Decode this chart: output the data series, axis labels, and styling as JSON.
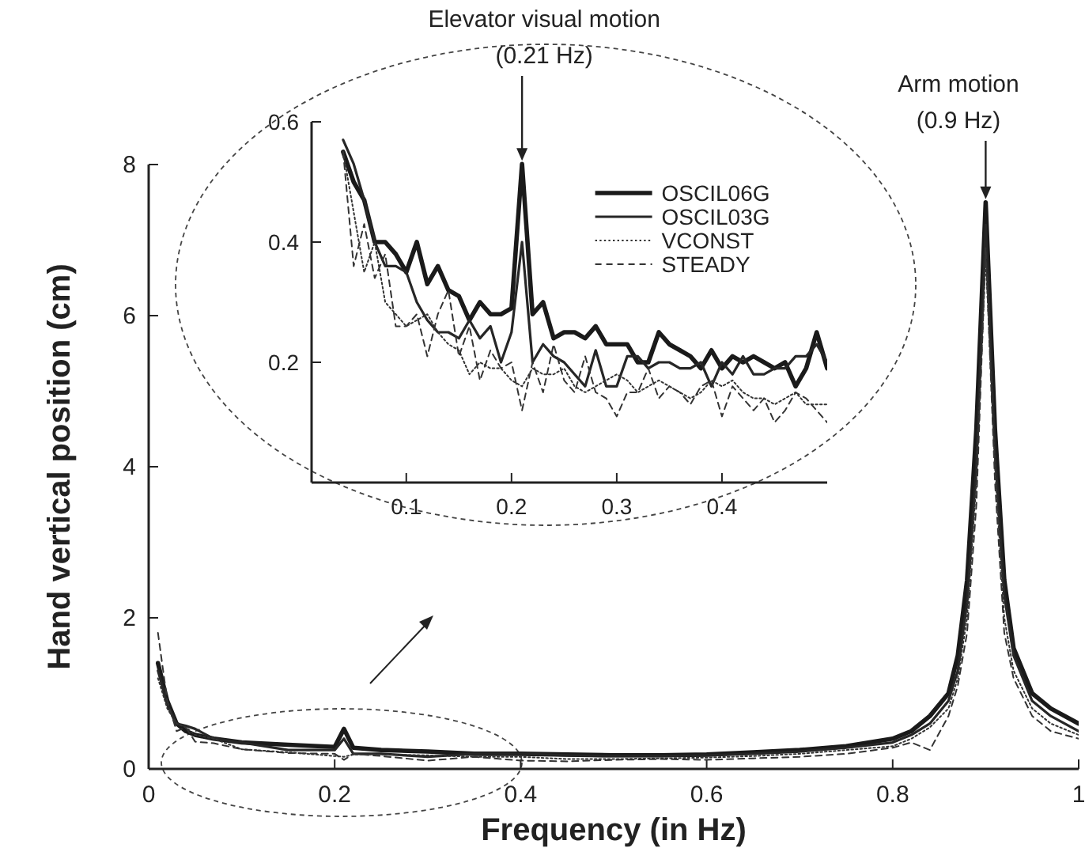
{
  "chart_data": [
    {
      "type": "line",
      "xlabel": "Frequency (in Hz)",
      "ylabel": "Hand vertical position (cm)",
      "x": [
        0.01,
        0.02,
        0.03,
        0.04,
        0.05,
        0.07,
        0.1,
        0.15,
        0.2,
        0.21,
        0.22,
        0.25,
        0.3,
        0.35,
        0.4,
        0.45,
        0.5,
        0.55,
        0.6,
        0.65,
        0.7,
        0.75,
        0.8,
        0.82,
        0.84,
        0.86,
        0.87,
        0.88,
        0.89,
        0.9,
        0.91,
        0.92,
        0.93,
        0.95,
        0.97,
        1.0
      ],
      "xlim": [
        0,
        1
      ],
      "xticks": [
        0,
        0.2,
        0.4,
        0.6,
        0.8,
        1
      ],
      "ylim": [
        0,
        8
      ],
      "yticks": [
        0,
        2,
        4,
        6,
        8
      ],
      "annotations": [
        {
          "text": "Arm motion\n(0.9 Hz)",
          "x": 0.9,
          "y": 7.5
        }
      ],
      "series": [
        {
          "color": "#1a1a1a",
          "line_style": "solid",
          "values": [
            1.4,
            0.9,
            0.6,
            0.5,
            0.45,
            0.4,
            0.35,
            0.32,
            0.29,
            0.53,
            0.28,
            0.25,
            0.23,
            0.2,
            0.2,
            0.19,
            0.18,
            0.18,
            0.19,
            0.22,
            0.25,
            0.3,
            0.4,
            0.5,
            0.7,
            1.0,
            1.5,
            2.5,
            4.5,
            7.5,
            4.5,
            2.5,
            1.6,
            1.0,
            0.8,
            0.6
          ]
        },
        {
          "color": "#262626",
          "line_style": "solid",
          "values": [
            1.3,
            0.85,
            0.6,
            0.57,
            0.53,
            0.4,
            0.35,
            0.25,
            0.25,
            0.4,
            0.2,
            0.2,
            0.16,
            0.2,
            0.2,
            0.18,
            0.17,
            0.17,
            0.18,
            0.2,
            0.23,
            0.28,
            0.35,
            0.45,
            0.6,
            0.9,
            1.3,
            2.2,
            4.0,
            7.2,
            4.2,
            2.3,
            1.5,
            0.9,
            0.7,
            0.5
          ]
        },
        {
          "color": "#333333",
          "line_style": "dotted",
          "values": [
            1.2,
            0.8,
            0.6,
            0.55,
            0.45,
            0.4,
            0.26,
            0.22,
            0.17,
            0.16,
            0.19,
            0.19,
            0.18,
            0.16,
            0.16,
            0.13,
            0.13,
            0.14,
            0.15,
            0.17,
            0.2,
            0.25,
            0.3,
            0.4,
            0.55,
            0.8,
            1.2,
            2.0,
            3.8,
            6.8,
            4.0,
            2.0,
            1.3,
            0.8,
            0.6,
            0.45
          ]
        },
        {
          "color": "#333333",
          "line_style": "dashed",
          "values": [
            1.8,
            0.9,
            0.5,
            0.55,
            0.36,
            0.34,
            0.26,
            0.21,
            0.2,
            0.12,
            0.2,
            0.17,
            0.11,
            0.16,
            0.11,
            0.1,
            0.12,
            0.13,
            0.12,
            0.14,
            0.16,
            0.2,
            0.28,
            0.35,
            0.25,
            0.7,
            1.1,
            1.8,
            3.5,
            6.9,
            3.8,
            1.8,
            1.2,
            0.7,
            0.5,
            0.4
          ]
        }
      ]
    },
    {
      "type": "line",
      "x": [
        0.04,
        0.05,
        0.06,
        0.07,
        0.08,
        0.09,
        0.1,
        0.11,
        0.12,
        0.13,
        0.14,
        0.15,
        0.16,
        0.17,
        0.18,
        0.19,
        0.2,
        0.21,
        0.22,
        0.23,
        0.24,
        0.25,
        0.26,
        0.27,
        0.28,
        0.29,
        0.3,
        0.31,
        0.32,
        0.33,
        0.34,
        0.35,
        0.36,
        0.37,
        0.38,
        0.39,
        0.4,
        0.41,
        0.42,
        0.43,
        0.44,
        0.45,
        0.46,
        0.47,
        0.48,
        0.49,
        0.5
      ],
      "xlim": [
        0.01,
        0.5
      ],
      "xticks": [
        0.1,
        0.2,
        0.3,
        0.4
      ],
      "ylim": [
        0,
        0.6
      ],
      "yticks": [
        0.2,
        0.4,
        0.6
      ],
      "legend": "top right",
      "annotations": [
        {
          "text": "Elevator visual motion\n(0.21 Hz)",
          "x": 0.21,
          "y": 0.53
        }
      ],
      "series": [
        {
          "name": "OSCIL06G",
          "color": "#1a1a1a",
          "line_style": "solid",
          "values": [
            0.55,
            0.5,
            0.47,
            0.4,
            0.4,
            0.38,
            0.35,
            0.4,
            0.33,
            0.36,
            0.32,
            0.31,
            0.27,
            0.3,
            0.28,
            0.28,
            0.29,
            0.53,
            0.28,
            0.3,
            0.24,
            0.25,
            0.25,
            0.24,
            0.26,
            0.23,
            0.23,
            0.23,
            0.2,
            0.2,
            0.25,
            0.23,
            0.22,
            0.21,
            0.19,
            0.22,
            0.19,
            0.21,
            0.2,
            0.21,
            0.2,
            0.19,
            0.2,
            0.16,
            0.19,
            0.25,
            0.19
          ]
        },
        {
          "name": "OSCIL03G",
          "color": "#262626",
          "line_style": "solid",
          "values": [
            0.57,
            0.53,
            0.47,
            0.4,
            0.36,
            0.36,
            0.35,
            0.3,
            0.27,
            0.25,
            0.25,
            0.24,
            0.27,
            0.24,
            0.26,
            0.2,
            0.25,
            0.4,
            0.2,
            0.23,
            0.21,
            0.2,
            0.18,
            0.16,
            0.22,
            0.16,
            0.16,
            0.21,
            0.21,
            0.19,
            0.2,
            0.2,
            0.19,
            0.19,
            0.2,
            0.16,
            0.2,
            0.18,
            0.21,
            0.18,
            0.18,
            0.19,
            0.19,
            0.21,
            0.21,
            0.23,
            0.2
          ]
        },
        {
          "name": "VCONST",
          "color": "#333333",
          "line_style": "dotted",
          "values": [
            0.55,
            0.45,
            0.35,
            0.4,
            0.3,
            0.28,
            0.26,
            0.27,
            0.28,
            0.25,
            0.23,
            0.22,
            0.18,
            0.2,
            0.19,
            0.19,
            0.17,
            0.16,
            0.19,
            0.18,
            0.18,
            0.19,
            0.16,
            0.15,
            0.16,
            0.17,
            0.18,
            0.17,
            0.15,
            0.16,
            0.17,
            0.16,
            0.15,
            0.14,
            0.15,
            0.17,
            0.16,
            0.17,
            0.15,
            0.14,
            0.14,
            0.13,
            0.14,
            0.15,
            0.13,
            0.13,
            0.13
          ]
        },
        {
          "name": "STEADY",
          "color": "#333333",
          "line_style": "dashed",
          "values": [
            0.55,
            0.36,
            0.43,
            0.34,
            0.38,
            0.26,
            0.26,
            0.28,
            0.21,
            0.28,
            0.32,
            0.21,
            0.26,
            0.17,
            0.22,
            0.19,
            0.2,
            0.12,
            0.2,
            0.15,
            0.23,
            0.17,
            0.15,
            0.21,
            0.15,
            0.14,
            0.11,
            0.15,
            0.15,
            0.19,
            0.14,
            0.16,
            0.15,
            0.13,
            0.16,
            0.17,
            0.11,
            0.16,
            0.14,
            0.12,
            0.14,
            0.1,
            0.12,
            0.15,
            0.14,
            0.12,
            0.1
          ]
        }
      ]
    }
  ]
}
